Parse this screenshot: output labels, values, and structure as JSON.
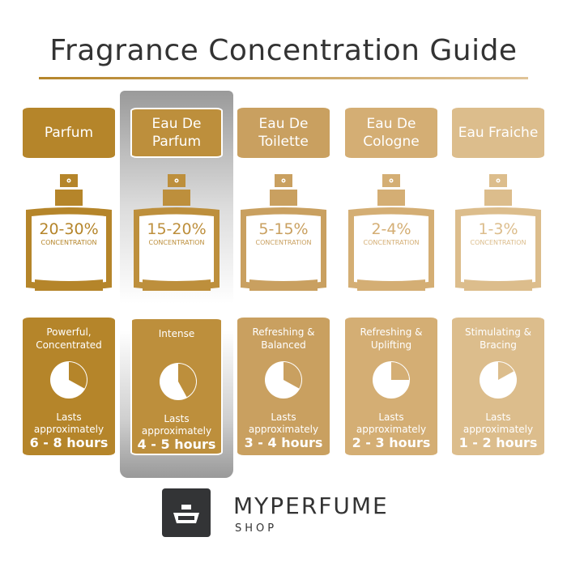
{
  "title": "Fragrance Concentration Guide",
  "highlight_index": 1,
  "columns": [
    {
      "name": "Parfum",
      "concentration": "20-30%",
      "concentration_label": "CONCENTRATION",
      "fill_level": 0.3,
      "description": "Powerful, Concentrated",
      "lasts_label": "Lasts approximately",
      "duration": "6 - 8 hours",
      "pie_fraction": 0.33,
      "color": "#b5852a"
    },
    {
      "name": "Eau De Parfum",
      "concentration": "15-20%",
      "concentration_label": "CONCENTRATION",
      "fill_level": 0.22,
      "description": "Intense",
      "lasts_label": "Lasts approximately",
      "duration": "4 - 5 hours",
      "pie_fraction": 0.42,
      "color": "#bd8f3c"
    },
    {
      "name": "Eau De Toilette",
      "concentration": "5-15%",
      "concentration_label": "CONCENTRATION",
      "fill_level": 0.12,
      "description": "Refreshing & Balanced",
      "lasts_label": "Lasts approximately",
      "duration": "3 - 4 hours",
      "pie_fraction": 0.33,
      "color": "#c9a060"
    },
    {
      "name": "Eau De Cologne",
      "concentration": "2-4%",
      "concentration_label": "CONCENTRATION",
      "fill_level": 0.07,
      "description": "Refreshing & Uplifting",
      "lasts_label": "Lasts approximately",
      "duration": "2 - 3 hours",
      "pie_fraction": 0.25,
      "color": "#d4ae74"
    },
    {
      "name": "Eau Fraiche",
      "concentration": "1-3%",
      "concentration_label": "CONCENTRATION",
      "fill_level": 0.04,
      "description": "Stimulating & Bracing",
      "lasts_label": "Lasts approximately",
      "duration": "1 - 2 hours",
      "pie_fraction": 0.17,
      "color": "#dcbd8c"
    }
  ],
  "brand": {
    "name": "MYPERFUME",
    "sub": "SHOP",
    "color": "#333436"
  }
}
